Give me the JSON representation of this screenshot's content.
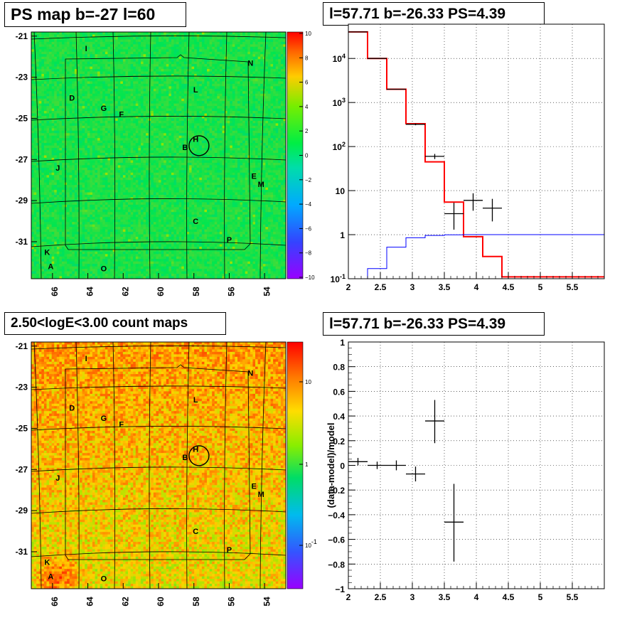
{
  "titles": {
    "map_ps": "PS map b=-27 l=60",
    "spectrum": "l=57.71 b=-26.33 PS=4.39",
    "map_counts": "2.50<logE<3.00 count maps",
    "residual": "l=57.71 b=-26.33 PS=4.39"
  },
  "chart_data": [
    {
      "type": "heatmap",
      "title": "PS map b=-27 l=60",
      "x_ticks": [
        "66",
        "64",
        "62",
        "60",
        "58",
        "56",
        "54"
      ],
      "y_ticks": [
        "-21",
        "-23",
        "-25",
        "-27",
        "-29",
        "-31"
      ],
      "xlim": [
        67.2,
        52.8
      ],
      "ylim": [
        -32.8,
        -20.8
      ],
      "colorbar_ticks": [
        "10",
        "8",
        "6",
        "4",
        "2",
        "0",
        "−2",
        "−4",
        "−6",
        "−8",
        "−10"
      ],
      "colorbar_range": [
        -10,
        10
      ],
      "highlight_circle": {
        "l": 57.71,
        "b": -26.33
      },
      "sources": [
        {
          "label": "I",
          "l": 64.1,
          "b": -21.6
        },
        {
          "label": "N",
          "l": 54.8,
          "b": -22.3
        },
        {
          "label": "L",
          "l": 57.9,
          "b": -23.6
        },
        {
          "label": "D",
          "l": 64.9,
          "b": -24.0
        },
        {
          "label": "G",
          "l": 63.1,
          "b": -24.5
        },
        {
          "label": "F",
          "l": 62.1,
          "b": -24.8
        },
        {
          "label": "H",
          "l": 57.9,
          "b": -26.0
        },
        {
          "label": "B",
          "l": 58.5,
          "b": -26.4
        },
        {
          "label": "J",
          "l": 65.7,
          "b": -27.4
        },
        {
          "label": "E",
          "l": 54.6,
          "b": -27.8
        },
        {
          "label": "M",
          "l": 54.2,
          "b": -28.2
        },
        {
          "label": "C",
          "l": 57.9,
          "b": -30.0
        },
        {
          "label": "P",
          "l": 56.0,
          "b": -30.9
        },
        {
          "label": "K",
          "l": 66.3,
          "b": -31.5
        },
        {
          "label": "A",
          "l": 66.1,
          "b": -32.2
        },
        {
          "label": "O",
          "l": 63.1,
          "b": -32.3
        }
      ]
    },
    {
      "type": "line",
      "title": "l=57.71 b=-26.33 PS=4.39",
      "ylog": true,
      "xlim": [
        2.0,
        6.0
      ],
      "ylim": [
        0.1,
        60000
      ],
      "grid": true,
      "x_ticks": [
        "2",
        "2.5",
        "3",
        "3.5",
        "4",
        "4.5",
        "5",
        "5.5"
      ],
      "y_ticks": [
        "10^-1",
        "1",
        "10",
        "10^2",
        "10^3",
        "10^4"
      ],
      "series": [
        {
          "style": "step",
          "color": "#ff0000",
          "edges": [
            2.0,
            2.3,
            2.6,
            2.9,
            3.2,
            3.5,
            3.8,
            4.1,
            4.4,
            4.7,
            5.0,
            5.3,
            5.6,
            6.0
          ],
          "values": [
            40000,
            10000,
            2000,
            330,
            45,
            5.5,
            0.9,
            0.32,
            0.11,
            0.11,
            0.11,
            0.11,
            0.11
          ]
        },
        {
          "style": "step",
          "color": "#0000ff",
          "edges": [
            2.0,
            2.3,
            2.6,
            2.9,
            3.2,
            3.5,
            3.8,
            4.1,
            4.4,
            4.7,
            5.0,
            5.3,
            5.6,
            6.0
          ],
          "values": [
            0.06,
            0.17,
            0.52,
            0.85,
            0.96,
            0.99,
            1.0,
            1.0,
            1.0,
            1.0,
            1.0,
            1.0,
            1.0
          ]
        },
        {
          "style": "points",
          "color": "#000000",
          "points": [
            {
              "x": 2.15,
              "xerr": 0.15,
              "y": 40000,
              "ylo": 39800,
              "yhi": 40200
            },
            {
              "x": 2.45,
              "xerr": 0.15,
              "y": 10000,
              "ylo": 9900,
              "yhi": 10100
            },
            {
              "x": 2.75,
              "xerr": 0.15,
              "y": 2000,
              "ylo": 1960,
              "yhi": 2040
            },
            {
              "x": 3.05,
              "xerr": 0.15,
              "y": 320,
              "ylo": 305,
              "yhi": 335
            },
            {
              "x": 3.35,
              "xerr": 0.15,
              "y": 60,
              "ylo": 52,
              "yhi": 68
            },
            {
              "x": 3.65,
              "xerr": 0.15,
              "y": 3,
              "ylo": 1.3,
              "yhi": 5.3
            },
            {
              "x": 3.95,
              "xerr": 0.15,
              "y": 6,
              "ylo": 3.5,
              "yhi": 8.7
            },
            {
              "x": 4.25,
              "xerr": 0.15,
              "y": 4,
              "ylo": 2,
              "yhi": 6.5
            }
          ]
        }
      ]
    },
    {
      "type": "heatmap",
      "title": "2.50<logE<3.00 count maps",
      "x_ticks": [
        "66",
        "64",
        "62",
        "60",
        "58",
        "56",
        "54"
      ],
      "y_ticks": [
        "-21",
        "-23",
        "-25",
        "-27",
        "-29",
        "-31"
      ],
      "xlim": [
        67.2,
        52.8
      ],
      "ylim": [
        -32.8,
        -20.8
      ],
      "colorbar_ticks": [
        "10",
        "1",
        "10^-1"
      ],
      "colorbar_log": true,
      "highlight_circle": {
        "l": 57.71,
        "b": -26.33
      },
      "sources": [
        {
          "label": "I",
          "l": 64.1,
          "b": -21.6
        },
        {
          "label": "N",
          "l": 54.8,
          "b": -22.3
        },
        {
          "label": "L",
          "l": 57.9,
          "b": -23.6
        },
        {
          "label": "D",
          "l": 64.9,
          "b": -24.0
        },
        {
          "label": "G",
          "l": 63.1,
          "b": -24.5
        },
        {
          "label": "F",
          "l": 62.1,
          "b": -24.8
        },
        {
          "label": "H",
          "l": 57.9,
          "b": -26.0
        },
        {
          "label": "B",
          "l": 58.5,
          "b": -26.4
        },
        {
          "label": "J",
          "l": 65.7,
          "b": -27.4
        },
        {
          "label": "E",
          "l": 54.6,
          "b": -27.8
        },
        {
          "label": "M",
          "l": 54.2,
          "b": -28.2
        },
        {
          "label": "C",
          "l": 57.9,
          "b": -30.0
        },
        {
          "label": "P",
          "l": 56.0,
          "b": -30.9
        },
        {
          "label": "K",
          "l": 66.3,
          "b": -31.5
        },
        {
          "label": "A",
          "l": 66.1,
          "b": -32.2
        },
        {
          "label": "O",
          "l": 63.1,
          "b": -32.3
        }
      ]
    },
    {
      "type": "scatter",
      "title": "l=57.71 b=-26.33 PS=4.39",
      "ylabel": "(data-model)/model",
      "xlim": [
        2.0,
        6.0
      ],
      "ylim": [
        -1.0,
        1.0
      ],
      "grid": true,
      "x_ticks": [
        "2",
        "2.5",
        "3",
        "3.5",
        "4",
        "4.5",
        "5",
        "5.5"
      ],
      "y_ticks": [
        "−1",
        "−0.8",
        "−0.6",
        "−0.4",
        "−0.2",
        "0",
        "0.2",
        "0.4",
        "0.6",
        "0.8",
        "1"
      ],
      "points": [
        {
          "x": 2.15,
          "xerr": 0.15,
          "y": 0.03,
          "ylo": 0.0,
          "yhi": 0.06
        },
        {
          "x": 2.45,
          "xerr": 0.15,
          "y": 0.0,
          "ylo": -0.03,
          "yhi": 0.03
        },
        {
          "x": 2.75,
          "xerr": 0.15,
          "y": 0.0,
          "ylo": -0.04,
          "yhi": 0.04
        },
        {
          "x": 3.05,
          "xerr": 0.15,
          "y": -0.07,
          "ylo": -0.13,
          "yhi": -0.01
        },
        {
          "x": 3.35,
          "xerr": 0.15,
          "y": 0.36,
          "ylo": 0.18,
          "yhi": 0.53
        },
        {
          "x": 3.65,
          "xerr": 0.15,
          "y": -0.46,
          "ylo": -0.78,
          "yhi": -0.15
        }
      ]
    }
  ]
}
